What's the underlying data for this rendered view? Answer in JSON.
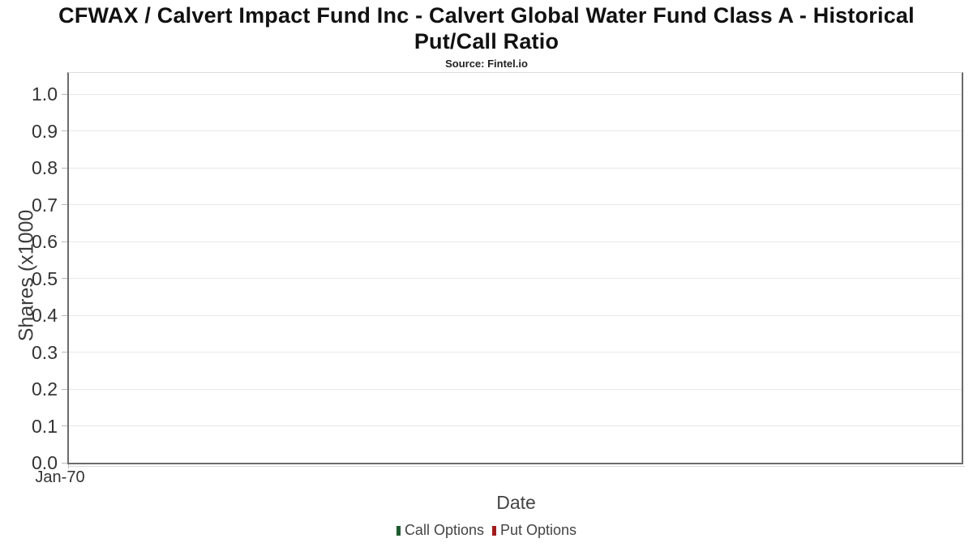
{
  "header": {
    "title_line1": "CFWAX / Calvert Impact Fund Inc - Calvert Global Water Fund Class A - Historical",
    "title_line2": "Put/Call Ratio",
    "subtitle": "Source: Fintel.io"
  },
  "chart_data": {
    "type": "line",
    "title": "CFWAX / Calvert Impact Fund Inc - Calvert Global Water Fund Class A - Historical Put/Call Ratio",
    "subtitle": "Source: Fintel.io",
    "xlabel": "Date",
    "ylabel": "Shares (x1000",
    "x_tick_labels": [
      "Jan-70"
    ],
    "y_tick_labels": [
      "0.0",
      "0.1",
      "0.2",
      "0.3",
      "0.4",
      "0.5",
      "0.6",
      "0.7",
      "0.8",
      "0.9",
      "1.0"
    ],
    "ylim": [
      0.0,
      1.06
    ],
    "grid": "horizontal",
    "legend_position": "bottom-center",
    "empty_plot": true,
    "series": [
      {
        "name": "Call Options",
        "color": "#1e5b30",
        "values": []
      },
      {
        "name": "Put Options",
        "color": "#a11c1c",
        "values": []
      }
    ]
  },
  "colors": {
    "background": "#ffffff",
    "axis_spine": "#6b6b6b",
    "plot_top_border": "#dddddd",
    "gridline": "#e8e8e8",
    "tick": "#b9b9b9",
    "title_text": "#111111",
    "tick_label_text": "#333333",
    "axis_label_text": "#3c3c3c",
    "legend_text": "#444444",
    "call_options": "#1e5b30",
    "put_options": "#a11c1c"
  }
}
